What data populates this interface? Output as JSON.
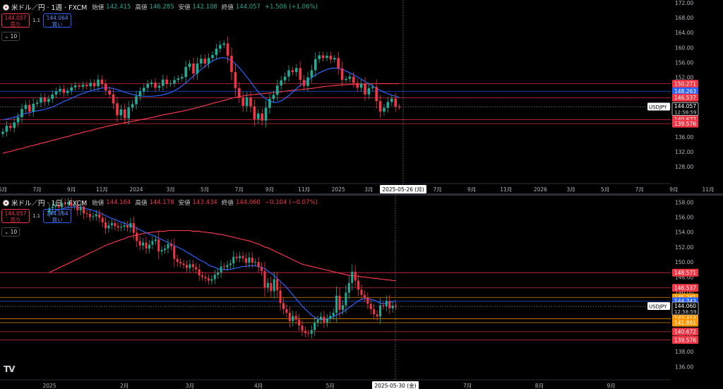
{
  "colors": {
    "up": "#22ab94",
    "down": "#f23645",
    "ma_short": "#2962ff",
    "ma_long": "#f23645",
    "axis_text": "#b2b5be",
    "hline_red": "#f23645",
    "hline_orange": "#ff9800"
  },
  "pane1": {
    "header": {
      "symbol": "米ドル／円 · 1週 · FXCM",
      "o_label": "始値",
      "o": "142.415",
      "h_label": "高値",
      "h": "146.285",
      "l_label": "安値",
      "l": "142.108",
      "c_label": "終値",
      "c": "144.057",
      "change": "+1.506 (+1.06%)"
    },
    "sell": {
      "price": "144.057",
      "label": "売り"
    },
    "buy": {
      "price": "144.064",
      "label": "買い"
    },
    "spread": "1.1",
    "indicator_count": "10",
    "crosshair_label": "2025-05-26 (月)",
    "symbol_tag": "USDJPY",
    "current_price": "144.057",
    "countdown": "12:58:59"
  },
  "pane2": {
    "header": {
      "symbol": "米ドル／円 · 1日 · FXCM",
      "o_label": "始値",
      "o": "144.164",
      "h_label": "高値",
      "h": "144.178",
      "l_label": "安値",
      "l": "143.434",
      "c_label": "終値",
      "c": "144.060",
      "change": "−0.104 (−0.07%)"
    },
    "sell": {
      "price": "144.057",
      "label": "売り"
    },
    "buy": {
      "price": "144.064",
      "label": "買い"
    },
    "spread": "1.1",
    "indicator_count": "10",
    "crosshair_label": "2025-05-30 (金)",
    "symbol_tag": "USDJPY",
    "current_price": "144.060",
    "countdown": "12:58:59"
  },
  "logo": "TV",
  "chart_data": [
    {
      "type": "candlestick",
      "title": "米ドル／円 · 1週 · FXCM",
      "ylim": [
        125,
        172
      ],
      "y_ticks": [
        128,
        132,
        136,
        140,
        144,
        148,
        152,
        156,
        160,
        164,
        168,
        172
      ],
      "x_ticks": [
        "5月",
        "7月",
        "9月",
        "11月",
        "2024",
        "3月",
        "5月",
        "7月",
        "9月",
        "11月",
        "2025",
        "3月",
        "5月",
        "7月",
        "9月",
        "11月",
        "2026",
        "3月",
        "5月",
        "7月",
        "9月",
        "11月"
      ],
      "x_tick_idx": [
        0,
        9,
        18,
        26,
        35,
        44,
        53,
        62,
        70,
        79,
        88,
        96,
        105,
        114,
        123,
        132,
        141,
        149,
        158,
        167,
        176,
        185
      ],
      "horizontal_levels": [
        {
          "price": 150.271,
          "label": "150.271",
          "color": "#f23645"
        },
        {
          "price": 148.263,
          "label": "148.263",
          "color": "#2962ff"
        },
        {
          "price": 146.537,
          "label": "146.537",
          "color": "#f23645"
        },
        {
          "price": 140.672,
          "label": "140.672",
          "color": "#f23645"
        },
        {
          "price": 139.576,
          "label": "139.576",
          "color": "#f23645"
        }
      ],
      "close": [
        137.4,
        139.0,
        138.4,
        139.9,
        141.3,
        143.5,
        144.6,
        142.8,
        144.9,
        145.2,
        146.6,
        145.4,
        146.2,
        147.4,
        148.2,
        148.9,
        147.8,
        148.4,
        149.3,
        149.8,
        149.5,
        150.0,
        149.6,
        150.5,
        149.6,
        151.4,
        150.2,
        148.5,
        147.4,
        145.0,
        141.8,
        143.4,
        141.0,
        143.9,
        144.8,
        146.9,
        148.2,
        149.2,
        150.2,
        150.6,
        149.2,
        149.7,
        151.4,
        150.2,
        150.4,
        151.3,
        151.7,
        152.1,
        154.8,
        155.7,
        153.0,
        155.7,
        157.0,
        155.7,
        157.2,
        158.0,
        159.7,
        160.7,
        161.1,
        157.8,
        153.4,
        149.1,
        146.6,
        144.3,
        146.6,
        144.2,
        140.8,
        142.3,
        140.4,
        143.8,
        146.2,
        147.3,
        149.8,
        151.2,
        152.2,
        153.9,
        153.4,
        154.5,
        151.3,
        149.7,
        152.0,
        153.9,
        156.9,
        157.9,
        157.2,
        157.8,
        156.8,
        157.2,
        154.4,
        151.3,
        151.6,
        152.2,
        150.5,
        149.2,
        150.3,
        147.4,
        149.1,
        149.4,
        145.6,
        142.8,
        143.8,
        145.4,
        146.3,
        144.1,
        144.06
      ],
      "ma_short": [
        140.6,
        140.8,
        141.0,
        141.3,
        141.6,
        142.0,
        142.3,
        142.5,
        142.8,
        143.0,
        143.2,
        143.4,
        143.7,
        144.0,
        144.5,
        145.0,
        145.5,
        145.9,
        146.4,
        146.8,
        147.3,
        147.7,
        148.0,
        148.4,
        148.6,
        148.9,
        149.1,
        149.2,
        149.2,
        149.0,
        148.7,
        148.4,
        148.0,
        147.7,
        147.4,
        147.2,
        147.0,
        146.9,
        146.9,
        146.9,
        147.0,
        147.1,
        147.3,
        147.6,
        147.9,
        148.4,
        149.0,
        149.7,
        150.5,
        151.4,
        152.3,
        153.2,
        154.1,
        154.9,
        155.7,
        156.4,
        156.9,
        157.2,
        157.3,
        157.0,
        156.5,
        155.7,
        154.6,
        153.4,
        152.1,
        150.8,
        149.4,
        148.1,
        147.0,
        146.2,
        145.6,
        145.3,
        145.3,
        145.7,
        146.3,
        147.1,
        148.0,
        149.0,
        149.8,
        150.5,
        151.2,
        151.9,
        152.6,
        153.2,
        153.7,
        154.1,
        154.4,
        154.5,
        154.4,
        154.1,
        153.7,
        153.2,
        152.7,
        152.1,
        151.5,
        150.9,
        150.3,
        149.7,
        149.1,
        148.5,
        148.0,
        147.6,
        147.2,
        146.9,
        146.6
      ],
      "ma_long": [
        131.6,
        131.9,
        132.1,
        132.4,
        132.7,
        132.9,
        133.2,
        133.5,
        133.7,
        134.0,
        134.3,
        134.5,
        134.8,
        135.1,
        135.3,
        135.6,
        135.9,
        136.1,
        136.4,
        136.7,
        136.9,
        137.2,
        137.5,
        137.7,
        138.0,
        138.3,
        138.5,
        138.8,
        139.0,
        139.2,
        139.4,
        139.6,
        139.8,
        140.0,
        140.2,
        140.4,
        140.6,
        140.8,
        141.0,
        141.2,
        141.4,
        141.7,
        141.9,
        142.1,
        142.3,
        142.5,
        142.7,
        142.9,
        143.1,
        143.4,
        143.6,
        143.9,
        144.2,
        144.4,
        144.7,
        145.0,
        145.3,
        145.5,
        145.8,
        146.1,
        146.4,
        146.6,
        146.8,
        147.0,
        147.2,
        147.3,
        147.4,
        147.5,
        147.6,
        147.7,
        147.8,
        147.9,
        148.0,
        148.1,
        148.3,
        148.4,
        148.5,
        148.6,
        148.7,
        148.8,
        148.9,
        149.0,
        149.2,
        149.3,
        149.5,
        149.6,
        149.7,
        149.8,
        149.9,
        150.0,
        150.0,
        150.1,
        150.1,
        150.2,
        150.2,
        150.2,
        150.3,
        150.3,
        150.3,
        150.3,
        150.3,
        150.3,
        150.3,
        150.3,
        150.3
      ]
    },
    {
      "type": "candlestick",
      "title": "米ドル／円 · 1日 · FXCM",
      "ylim": [
        135,
        158.5
      ],
      "y_ticks": [
        136,
        138,
        140,
        142,
        144,
        146,
        148,
        150,
        152,
        154,
        156,
        158
      ],
      "x_ticks": [
        "2025",
        "2月",
        "3月",
        "4月",
        "5月",
        "6月",
        "7月",
        "8月",
        "9月"
      ],
      "x_tick_idx": [
        0,
        24,
        45,
        67,
        90,
        111,
        134,
        157,
        180
      ],
      "horizontal_levels": [
        {
          "price": 148.571,
          "label": "148.571",
          "color": "#f23645"
        },
        {
          "price": 146.537,
          "label": "146.537",
          "color": "#f23645"
        },
        {
          "price": 145.261,
          "label": "145.261",
          "color": "#ff9800"
        },
        {
          "price": 144.742,
          "label": "144.742",
          "color": "#2962ff"
        },
        {
          "price": 142.414,
          "label": "142.414",
          "color": "#ff9800"
        },
        {
          "price": 141.891,
          "label": "141.891",
          "color": "#ff9800"
        },
        {
          "price": 140.672,
          "label": "140.672",
          "color": "#f23645"
        },
        {
          "price": 139.576,
          "label": "139.576",
          "color": "#f23645"
        }
      ],
      "close": [
        157.2,
        157.4,
        157.6,
        157.3,
        157.9,
        157.7,
        158.0,
        157.5,
        157.6,
        156.9,
        157.4,
        156.5,
        156.4,
        156.0,
        156.1,
        156.4,
        155.9,
        155.3,
        154.5,
        154.9,
        155.2,
        154.8,
        154.6,
        154.7,
        154.9,
        154.6,
        155.2,
        153.9,
        152.8,
        152.2,
        152.6,
        151.8,
        152.3,
        152.8,
        153.0,
        151.4,
        151.6,
        151.8,
        152.4,
        152.1,
        150.4,
        150.0,
        149.8,
        149.6,
        149.2,
        149.7,
        149.3,
        149.0,
        148.2,
        148.0,
        147.8,
        147.5,
        147.7,
        148.3,
        148.6,
        149.4,
        149.3,
        149.6,
        149.8,
        150.7,
        150.5,
        150.8,
        150.5,
        149.9,
        150.6,
        149.9,
        150.0,
        149.3,
        148.8,
        146.6,
        147.2,
        146.1,
        147.7,
        146.2,
        144.5,
        143.7,
        143.2,
        142.1,
        142.8,
        142.3,
        141.5,
        140.8,
        140.5,
        140.4,
        140.9,
        141.9,
        142.3,
        142.7,
        141.9,
        142.4,
        142.8,
        143.2,
        145.5,
        143.6,
        144.2,
        145.9,
        147.2,
        148.7,
        147.5,
        146.3,
        145.6,
        145.2,
        144.4,
        143.7,
        143.0,
        142.7,
        144.2,
        144.1,
        144.8,
        143.8,
        144.16,
        144.06
      ],
      "ma_short": [
        156.4,
        156.6,
        156.8,
        157.0,
        157.1,
        157.2,
        157.3,
        157.3,
        157.4,
        157.3,
        157.3,
        157.2,
        157.1,
        157.0,
        156.9,
        156.7,
        156.6,
        156.4,
        156.2,
        156.0,
        155.8,
        155.7,
        155.5,
        155.3,
        155.2,
        155.0,
        154.9,
        154.7,
        154.5,
        154.3,
        154.1,
        153.9,
        153.7,
        153.6,
        153.4,
        153.2,
        153.0,
        152.8,
        152.6,
        152.4,
        152.2,
        152.0,
        151.8,
        151.6,
        151.3,
        151.1,
        150.8,
        150.6,
        150.3,
        150.1,
        149.9,
        149.6,
        149.4,
        149.3,
        149.1,
        149.0,
        149.0,
        149.0,
        149.0,
        149.1,
        149.2,
        149.3,
        149.4,
        149.4,
        149.5,
        149.5,
        149.5,
        149.4,
        149.3,
        149.1,
        148.8,
        148.5,
        148.2,
        147.8,
        147.4,
        147.0,
        146.6,
        146.1,
        145.6,
        145.1,
        144.6,
        144.1,
        143.7,
        143.3,
        142.9,
        142.6,
        142.4,
        142.3,
        142.3,
        142.4,
        142.5,
        142.7,
        142.9,
        143.1,
        143.3,
        143.6,
        143.9,
        144.2,
        144.5,
        144.8,
        145.0,
        145.1,
        145.1,
        145.0,
        144.9,
        144.7,
        144.5,
        144.4,
        144.5,
        144.6,
        144.7,
        144.8
      ],
      "ma_long": [
        148.6,
        148.8,
        149.0,
        149.2,
        149.4,
        149.6,
        149.8,
        150.0,
        150.2,
        150.4,
        150.6,
        150.8,
        151.0,
        151.2,
        151.4,
        151.6,
        151.8,
        152.0,
        152.2,
        152.4,
        152.5,
        152.7,
        152.8,
        153.0,
        153.1,
        153.3,
        153.4,
        153.5,
        153.6,
        153.7,
        153.8,
        153.9,
        153.9,
        154.0,
        154.0,
        154.1,
        154.1,
        154.1,
        154.2,
        154.2,
        154.2,
        154.2,
        154.2,
        154.2,
        154.2,
        154.2,
        154.1,
        154.1,
        154.1,
        154.0,
        154.0,
        153.9,
        153.9,
        153.8,
        153.7,
        153.7,
        153.6,
        153.5,
        153.4,
        153.3,
        153.2,
        153.1,
        153.0,
        152.9,
        152.8,
        152.7,
        152.5,
        152.4,
        152.2,
        152.0,
        151.9,
        151.7,
        151.5,
        151.3,
        151.1,
        150.9,
        150.7,
        150.5,
        150.3,
        150.1,
        149.9,
        149.7,
        149.6,
        149.5,
        149.4,
        149.3,
        149.2,
        149.1,
        149.0,
        148.9,
        148.8,
        148.7,
        148.6,
        148.5,
        148.4,
        148.3,
        148.2,
        148.2,
        148.1,
        148.1,
        148.0,
        148.0,
        147.9,
        147.9,
        147.8,
        147.8,
        147.7,
        147.7,
        147.6,
        147.6,
        147.5,
        147.5
      ]
    }
  ]
}
